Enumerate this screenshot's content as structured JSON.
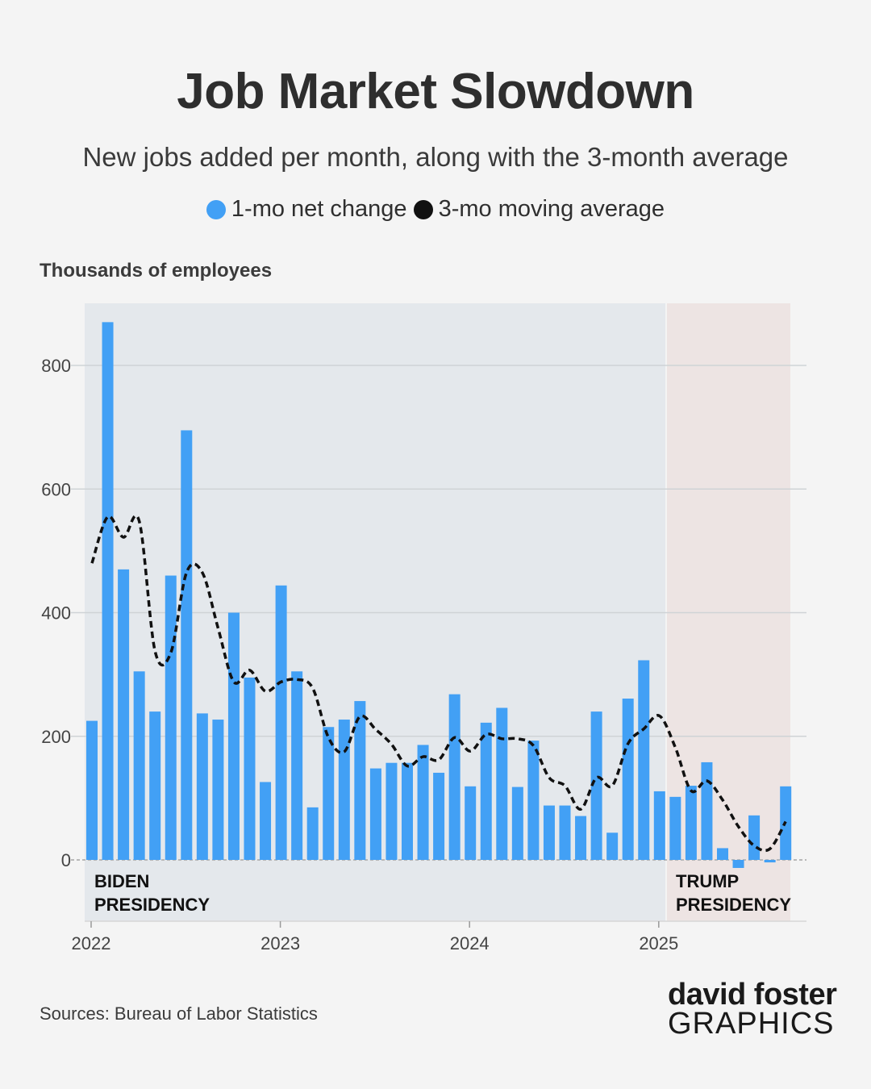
{
  "title": "Job Market Slowdown",
  "subtitle": "New jobs added per month, along with the 3-month average",
  "legend": {
    "bar_label": "1-mo net change",
    "line_label": "3-mo moving average",
    "bar_color": "#42a0f5",
    "line_color": "#111111"
  },
  "y_unit_label": "Thousands of employees",
  "source": "Sources: Bureau of Labor Statistics",
  "logo": {
    "top": "david foster",
    "bottom": "GRAPHICS"
  },
  "chart_data": {
    "type": "bar",
    "title": "Job Market Slowdown",
    "ylabel": "Thousands of employees",
    "ylim": [
      -100,
      900
    ],
    "yticks": [
      0,
      200,
      400,
      600,
      800
    ],
    "x_tick_labels": [
      {
        "label": "2022",
        "index": 0
      },
      {
        "label": "2023",
        "index": 12
      },
      {
        "label": "2024",
        "index": 24
      },
      {
        "label": "2025",
        "index": 36
      }
    ],
    "categories": [
      "2022-01",
      "2022-02",
      "2022-03",
      "2022-04",
      "2022-05",
      "2022-06",
      "2022-07",
      "2022-08",
      "2022-09",
      "2022-10",
      "2022-11",
      "2022-12",
      "2023-01",
      "2023-02",
      "2023-03",
      "2023-04",
      "2023-05",
      "2023-06",
      "2023-07",
      "2023-08",
      "2023-09",
      "2023-10",
      "2023-11",
      "2023-12",
      "2024-01",
      "2024-02",
      "2024-03",
      "2024-04",
      "2024-05",
      "2024-06",
      "2024-07",
      "2024-08",
      "2024-09",
      "2024-10",
      "2024-11",
      "2024-12",
      "2025-01",
      "2025-02",
      "2025-03",
      "2025-04",
      "2025-05",
      "2025-06",
      "2025-07",
      "2025-08",
      "2025-09"
    ],
    "series": [
      {
        "name": "1-mo net change",
        "type": "bar",
        "values": [
          225,
          870,
          470,
          305,
          240,
          460,
          695,
          237,
          227,
          400,
          295,
          126,
          444,
          305,
          85,
          215,
          227,
          257,
          148,
          157,
          157,
          186,
          141,
          268,
          119,
          222,
          246,
          118,
          193,
          88,
          88,
          71,
          240,
          44,
          261,
          323,
          111,
          102,
          120,
          158,
          19,
          -13,
          72,
          -4,
          119
        ]
      },
      {
        "name": "3-mo moving average",
        "type": "line",
        "values": [
          480,
          555,
          522,
          548,
          338,
          335,
          465,
          465,
          375,
          288,
          307,
          273,
          288,
          292,
          278,
          198,
          175,
          232,
          211,
          187,
          152,
          167,
          162,
          198,
          176,
          203,
          196,
          196,
          185,
          133,
          120,
          82,
          133,
          120,
          188,
          212,
          233,
          182,
          112,
          128,
          97,
          54,
          23,
          18,
          62
        ]
      }
    ],
    "periods": [
      {
        "label": [
          "BIDEN",
          "PRESIDENCY"
        ],
        "start_index": 0,
        "end_index": 36,
        "color": "#e4e8ec"
      },
      {
        "label": [
          "TRUMP",
          "PRESIDENCY"
        ],
        "start_index": 37,
        "end_index": 44,
        "color": "#ede4e3"
      }
    ]
  }
}
